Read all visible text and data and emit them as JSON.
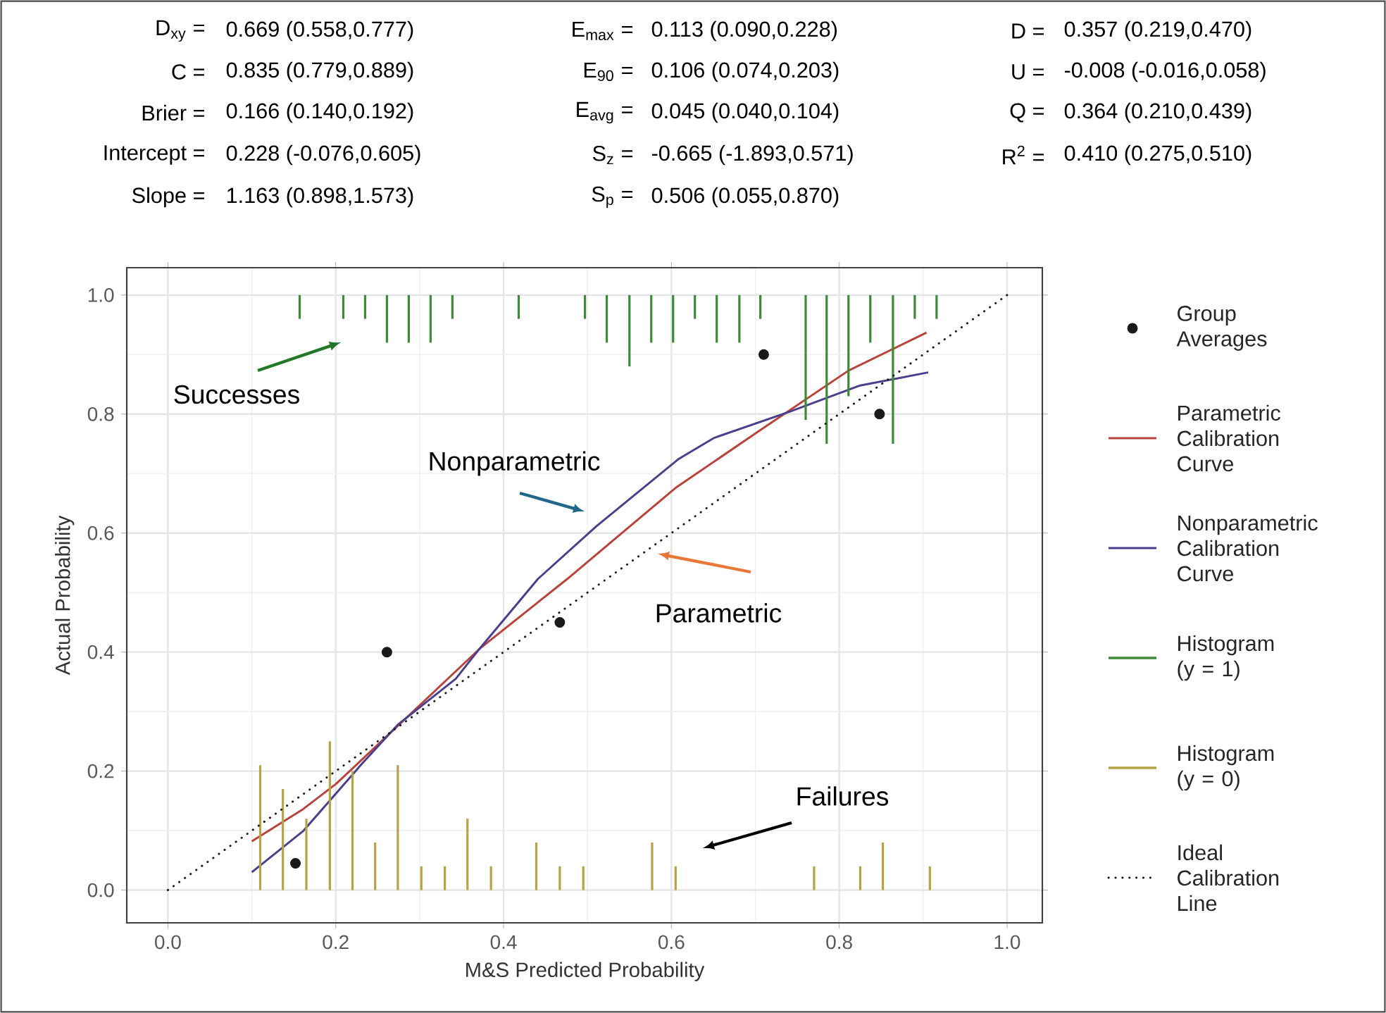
{
  "chart_data": {
    "type": "line",
    "xlabel": "M&S Predicted Probability",
    "ylabel": "Actual Probability",
    "xlim": [
      -0.049,
      1.042
    ],
    "ylim": [
      -0.055,
      1.046
    ],
    "xticks": [
      {
        "value": 0,
        "label": "0.0"
      },
      {
        "value": 0.2,
        "label": "0.2"
      },
      {
        "value": 0.4,
        "label": "0.4"
      },
      {
        "value": 0.6,
        "label": "0.6"
      },
      {
        "value": 0.8,
        "label": "0.8"
      },
      {
        "value": 1,
        "label": "1.0"
      }
    ],
    "yticks": [
      {
        "value": 0,
        "label": "0.0"
      },
      {
        "value": 0.2,
        "label": "0.2"
      },
      {
        "value": 0.4,
        "label": "0.4"
      },
      {
        "value": 0.6,
        "label": "0.6"
      },
      {
        "value": 0.8,
        "label": "0.8"
      },
      {
        "value": 1,
        "label": "1.0"
      }
    ],
    "grid": true,
    "legend": "right",
    "series": [
      {
        "name": "Group Averages",
        "type": "scatter",
        "marker": "circle",
        "color": "#1a1a1a",
        "x": [
          0.152,
          0.261,
          0.467,
          0.71,
          0.848
        ],
        "values": [
          0.045,
          0.4,
          0.45,
          0.9,
          0.8
        ]
      },
      {
        "name": "Parametric Calibration Curve",
        "type": "line",
        "color": "#b8433a",
        "x": [
          0.1,
          0.161,
          0.2,
          0.274,
          0.371,
          0.476,
          0.605,
          0.71,
          0.811,
          0.904
        ],
        "values": [
          0.082,
          0.136,
          0.178,
          0.276,
          0.405,
          0.523,
          0.676,
          0.777,
          0.873,
          0.937
        ]
      },
      {
        "name": "Nonparametric Calibration Curve",
        "type": "line",
        "color": "#4b3f8c",
        "x": [
          0.1,
          0.161,
          0.231,
          0.274,
          0.343,
          0.371,
          0.441,
          0.511,
          0.609,
          0.651,
          0.741,
          0.825,
          0.906
        ],
        "values": [
          0.03,
          0.099,
          0.212,
          0.278,
          0.355,
          0.405,
          0.523,
          0.612,
          0.725,
          0.76,
          0.804,
          0.848,
          0.87
        ]
      },
      {
        "name": "Histogram (y = 1)",
        "type": "bar",
        "color": "#3d8b37",
        "x": [
          0.157,
          0.209,
          0.235,
          0.261,
          0.287,
          0.313,
          0.339,
          0.418,
          0.497,
          0.523,
          0.55,
          0.576,
          0.602,
          0.628,
          0.654,
          0.681,
          0.706,
          0.76,
          0.785,
          0.811,
          0.837,
          0.864,
          0.89,
          0.916
        ],
        "base": [
          1,
          1,
          1,
          1,
          1,
          1,
          1,
          1,
          1,
          1,
          1,
          1,
          1,
          1,
          1,
          1,
          1,
          1,
          1,
          1,
          1,
          1,
          1,
          1
        ],
        "values": [
          -0.04,
          -0.04,
          -0.04,
          -0.08,
          -0.08,
          -0.08,
          -0.04,
          -0.04,
          -0.04,
          -0.08,
          -0.12,
          -0.08,
          -0.08,
          -0.04,
          -0.08,
          -0.08,
          -0.04,
          -0.21,
          -0.25,
          -0.17,
          -0.08,
          -0.25,
          -0.04,
          -0.04
        ]
      },
      {
        "name": "Histogram (y = 0)",
        "type": "bar",
        "color": "#b5a345",
        "x": [
          0.11,
          0.137,
          0.165,
          0.193,
          0.22,
          0.247,
          0.274,
          0.302,
          0.33,
          0.357,
          0.385,
          0.439,
          0.467,
          0.495,
          0.577,
          0.605,
          0.77,
          0.825,
          0.852,
          0.908
        ],
        "values": [
          0.21,
          0.17,
          0.12,
          0.25,
          0.2,
          0.08,
          0.21,
          0.04,
          0.04,
          0.12,
          0.04,
          0.08,
          0.04,
          0.04,
          0.08,
          0.04,
          0.04,
          0.04,
          0.08,
          0.04
        ]
      },
      {
        "name": "Ideal Calibration Line",
        "line_style": "dotted",
        "color": "#1a1a1a",
        "x": [
          0,
          1
        ],
        "values": [
          0,
          1
        ]
      }
    ],
    "annotations": [
      "D$_{xy}$ =",
      "0.669 (0.558,0.777)",
      "C =",
      "0.835 (0.779,0.889)",
      "Brier =",
      "0.166 (0.140,0.192)",
      "Intercept =",
      "0.228 (-0.076,0.605)",
      "Slope =",
      "1.163 (0.898,1.573)",
      "E$_{max}$ =",
      "0.113 (0.090,0.228)",
      "E$_{90}$ =",
      "0.106 (0.074,0.203)",
      "E$_{avg}$ =",
      "0.045 (0.040,0.104)",
      "S$_{z}$ =",
      "-0.665 (-1.893,0.571)",
      "S$_{p}$ =",
      "0.506 (0.055,0.870)",
      "D =",
      "0.357 (0.219,0.470)",
      "U =",
      "-0.008 (-0.016,0.058)",
      "Q =",
      "0.364 (0.210,0.439)",
      "R$^{2}$ =",
      "0.410 (0.275,0.510)",
      "Successes",
      "Nonparametric",
      "Parametric",
      "Failures"
    ]
  }
}
